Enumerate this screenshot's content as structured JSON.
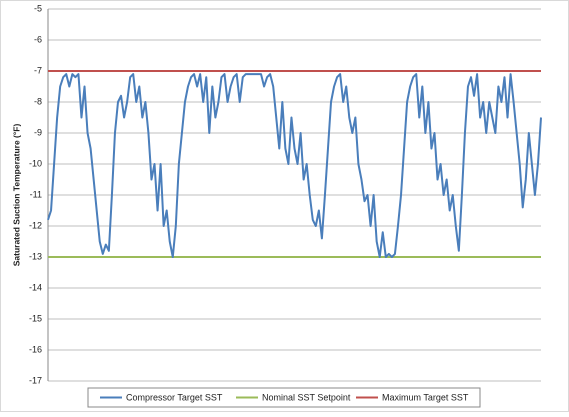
{
  "chart_data": {
    "type": "line",
    "y_label": "Saturated Suction Temperature (°F)",
    "ylim": [
      -17,
      -5
    ],
    "yticks": [
      -17,
      -16,
      -15,
      -14,
      -13,
      -12,
      -11,
      -10,
      -9,
      -8,
      -7,
      -6,
      -5
    ],
    "grid": true,
    "legend": "bottom",
    "series": [
      {
        "name": "Compressor Target SST",
        "color": "#4a7ebb",
        "values": [
          -11.8,
          -11.5,
          -10,
          -8.5,
          -7.5,
          -7.2,
          -7.1,
          -7.5,
          -7.1,
          -7.2,
          -7.1,
          -8.5,
          -7.5,
          -9,
          -9.5,
          -10.5,
          -11.5,
          -12.5,
          -12.9,
          -12.6,
          -12.8,
          -11,
          -9,
          -8,
          -7.8,
          -8.5,
          -8,
          -7.2,
          -7.1,
          -8,
          -7.5,
          -8.5,
          -8,
          -9,
          -10.5,
          -10,
          -11.5,
          -10,
          -12,
          -11.5,
          -12.5,
          -13,
          -12,
          -10,
          -9,
          -8,
          -7.5,
          -7.2,
          -7.1,
          -7.5,
          -7.1,
          -8,
          -7.2,
          -9,
          -7.5,
          -8.5,
          -8,
          -7.2,
          -7.1,
          -8,
          -7.5,
          -7.2,
          -7.1,
          -8,
          -7.2,
          -7.1,
          -7.1,
          -7.1,
          -7.1,
          -7.1,
          -7.1,
          -7.5,
          -7.2,
          -7.1,
          -7.5,
          -8.5,
          -9.5,
          -8,
          -9.5,
          -10,
          -8.5,
          -9.5,
          -10,
          -9,
          -10.5,
          -10,
          -11,
          -11.8,
          -12,
          -11.5,
          -12.4,
          -11,
          -9.5,
          -8,
          -7.5,
          -7.2,
          -7.1,
          -8,
          -7.5,
          -8.5,
          -9,
          -8.5,
          -10,
          -10.5,
          -11.2,
          -11,
          -12,
          -11,
          -12.5,
          -13,
          -12.2,
          -13,
          -12.9,
          -13,
          -12.9,
          -12,
          -11,
          -9.5,
          -8,
          -7.5,
          -7.2,
          -7.1,
          -8.5,
          -7.5,
          -9,
          -8,
          -9.5,
          -9,
          -10.5,
          -10,
          -11,
          -10.5,
          -11.5,
          -11,
          -12,
          -12.8,
          -11,
          -9,
          -7.5,
          -7.2,
          -7.8,
          -7.1,
          -8.5,
          -8,
          -9,
          -8,
          -8.5,
          -9,
          -7.5,
          -8,
          -7.2,
          -8.5,
          -7.1,
          -8,
          -9,
          -10,
          -11.4,
          -10.5,
          -9,
          -10,
          -11,
          -10,
          -8.5
        ]
      },
      {
        "name": "Nominal SST Setpoint",
        "color": "#9bbb59",
        "value": -13
      },
      {
        "name": "Maximum Target SST",
        "color": "#c0504d",
        "value": -7
      }
    ]
  }
}
